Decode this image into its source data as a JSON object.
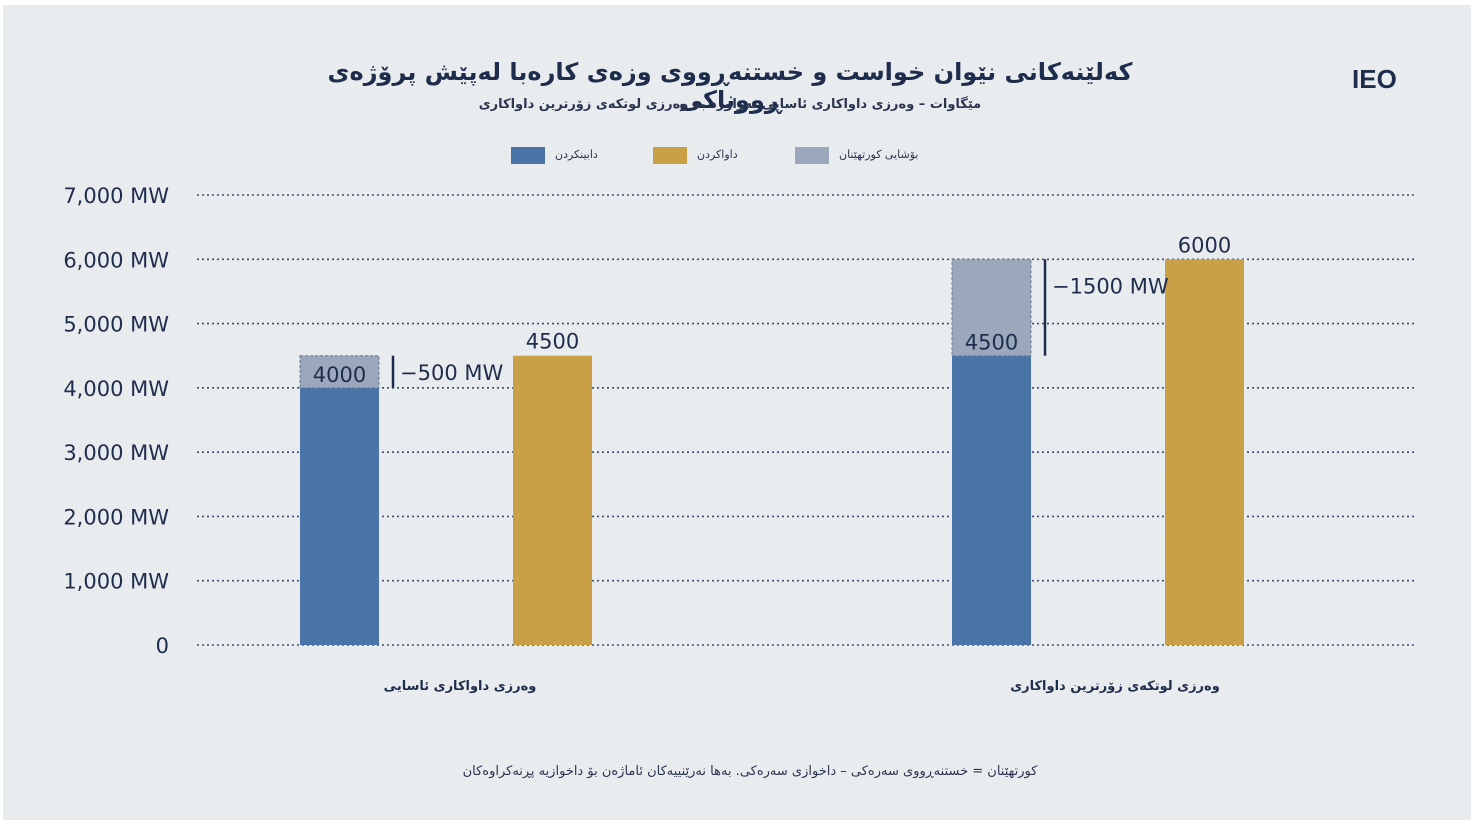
{
  "title": "کەلێنەکانی نێوان خواست و خستنەڕووی وزەی کارەبا لەپێش پرۆژەی ڕووناکی",
  "subtitle": "مێگاوات – وەرزی داواکاری ئاسایی بەراورد بە وەرزی لوتکەی زۆرترین داواکاری",
  "brand": "IEO",
  "footnote": "کورتهێنان = خستنەڕووی سەرەکی – داخوازی سەرەکی. بەها نەرێنییەکان ئاماژەن بۆ داخوازیە پڕنەکراوەکان",
  "legend": [
    {
      "label": "دابینکردن",
      "color": "#4a74a8"
    },
    {
      "label": "داواکردن",
      "color": "#c9a045"
    },
    {
      "label": "بۆشایی کورتهێنان",
      "color": "#9ba8bb"
    }
  ],
  "colors": {
    "supply": "#4a74a8",
    "demand": "#c9a045",
    "gap": "#9ba8bb",
    "text": "#1f2d4d",
    "grid": "#3e4f73"
  },
  "chart_data": {
    "type": "bar",
    "title": "کەلێنەکانی نێوان خواست و خستنەڕووی وزەی کارەبا لەپێش پرۆژەی ڕووناکی",
    "categories": [
      "وەرزی داواکاری ئاسایی",
      "وەرزی لوتکەی زۆرترین داواکاری"
    ],
    "series": [
      {
        "name": "دابینکردن",
        "values": [
          4000,
          4500
        ]
      },
      {
        "name": "داواکردن",
        "values": [
          4500,
          6000
        ]
      },
      {
        "name": "بۆشایی کورتهێنان",
        "values": [
          500,
          1500
        ]
      }
    ],
    "value_labels": {
      "supply": [
        "4000",
        "4500"
      ],
      "demand": [
        "4500",
        "6000"
      ]
    },
    "gap_labels": [
      "−500 MW",
      "−1500 MW"
    ],
    "y_ticks": [
      0,
      1000,
      2000,
      3000,
      4000,
      5000,
      6000,
      7000
    ],
    "y_tick_labels": [
      "0",
      "1,000 MW",
      "2,000 MW",
      "3,000 MW",
      "4,000 MW",
      "5,000 MW",
      "6,000 MW",
      "7,000 MW"
    ],
    "ylim": [
      0,
      7000
    ],
    "grid": true,
    "legend_position": "top-center"
  }
}
